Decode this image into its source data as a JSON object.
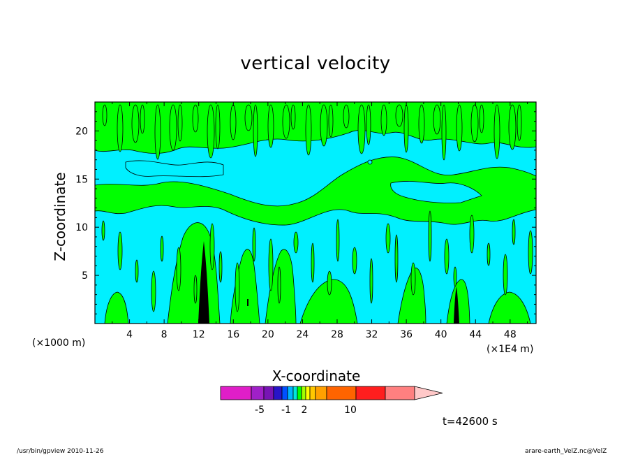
{
  "window": {
    "footer_left": "/usr/bin/gpview 2010-11-26",
    "footer_right": "arare-earth_VelZ.nc@VelZ"
  },
  "time_label": "t=42600 s",
  "chart_data": {
    "type": "heatmap",
    "title": "vertical velocity",
    "xlabel": "X-coordinate",
    "ylabel": "Z-coordinate",
    "x_unit_left": "(×1000 m)",
    "x_unit_right": "(×1E4 m)",
    "xlim": [
      0,
      51
    ],
    "ylim": [
      0,
      23
    ],
    "x_ticks": [
      4,
      8,
      12,
      16,
      20,
      24,
      28,
      32,
      36,
      40,
      44,
      48
    ],
    "y_ticks": [
      5,
      10,
      15,
      20
    ],
    "colorbar": {
      "levels": [
        "",
        "",
        "",
        "",
        "",
        "",
        "",
        "",
        "",
        "",
        "",
        "",
        "",
        "",
        "",
        ""
      ],
      "colors": [
        "#e01ec8",
        "#a020c8",
        "#7814b4",
        "#2814c8",
        "#0050ff",
        "#00b4ff",
        "#00e6dc",
        "#00ff00",
        "#a0ff00",
        "#ffff00",
        "#ffc800",
        "#ffa000",
        "#ff6400",
        "#ff1e1e",
        "#ff8080",
        "#ffc8c8"
      ],
      "tick_labels": [
        "-5",
        "-1",
        "2",
        "10"
      ]
    },
    "field_colors": {
      "positive": "#00ff00",
      "negative": "#00f0ff",
      "strong": "#000000"
    }
  }
}
